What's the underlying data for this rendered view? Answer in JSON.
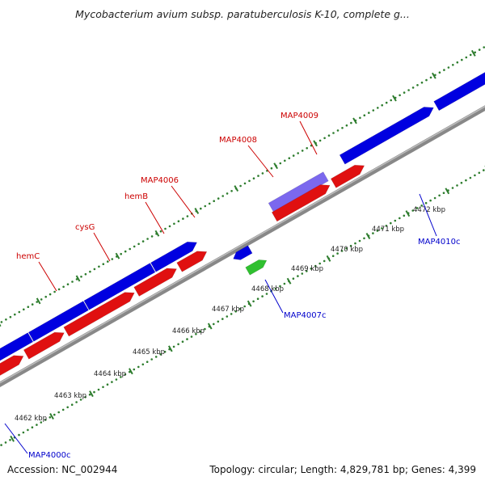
{
  "header": {
    "title": "Mycobacterium avium subsp. paratuberculosis K-10, complete g..."
  },
  "footer": {
    "accession": "Accession: NC_002944",
    "summary": "Topology: circular; Length: 4,829,781 bp; Genes: 4,399"
  },
  "map": {
    "colors": {
      "backbone": "#888888",
      "tick": "#2e7d2e",
      "forward_gene": "#0000e0",
      "reverse_gene": "#e01010",
      "hypothetical_gene": "#7b68ee",
      "rna_gene": "#30c030",
      "forward_label": "#cc0000",
      "reverse_label": "#0000cc"
    },
    "ticks": [
      {
        "label": "4462 kbp"
      },
      {
        "label": "4463 kbp"
      },
      {
        "label": "4464 kbp"
      },
      {
        "label": "4465 kbp"
      },
      {
        "label": "4466 kbp"
      },
      {
        "label": "4467 kbp"
      },
      {
        "label": "4468 kbp"
      },
      {
        "label": "4469 kbp"
      },
      {
        "label": "4470 kbp"
      },
      {
        "label": "4471 kbp"
      },
      {
        "label": "4472 kbp"
      }
    ],
    "gene_labels_top": [
      {
        "label": "hemC"
      },
      {
        "label": "cysG"
      },
      {
        "label": "hemB"
      },
      {
        "label": "MAP4006"
      },
      {
        "label": "MAP4008"
      },
      {
        "label": "MAP4009"
      }
    ],
    "gene_labels_bottom": [
      {
        "label": "MAP4000c"
      },
      {
        "label": "MAP4007c"
      },
      {
        "label": "MAP4010c"
      }
    ]
  }
}
